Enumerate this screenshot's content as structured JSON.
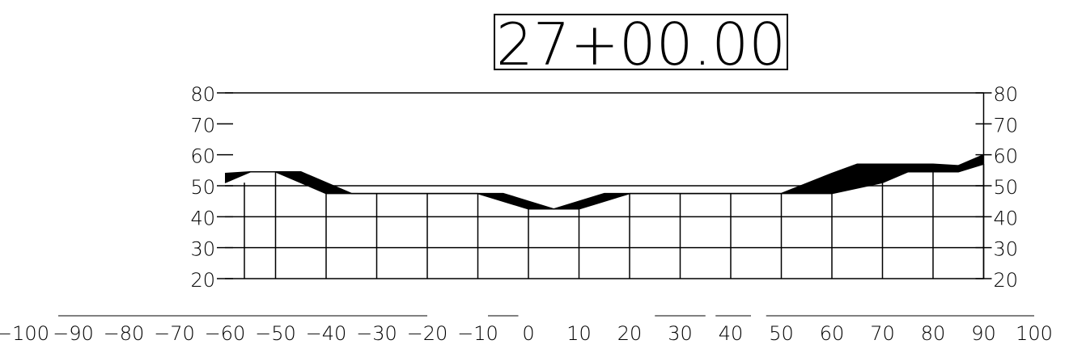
{
  "station_label": "27+00.00",
  "colors": {
    "ink": "#000000",
    "background": "#ffffff",
    "cut_fill_area": "#000000"
  },
  "chart_data": {
    "type": "area",
    "title": "27+00.00",
    "xlim": [
      -100,
      100
    ],
    "ylim": [
      20,
      80
    ],
    "x_tick_labels": [
      "-100",
      "-90",
      "-80",
      "-70",
      "-60",
      "-50",
      "-40",
      "-30",
      "-20",
      "-10",
      "0",
      "10",
      "20",
      "30",
      "40",
      "50",
      "60",
      "70",
      "80",
      "90",
      "100"
    ],
    "y_tick_labels": [
      "20",
      "30",
      "40",
      "50",
      "60",
      "70",
      "80"
    ],
    "grid": true,
    "grid_x": [
      -50,
      -40,
      -30,
      -20,
      -10,
      0,
      10,
      20,
      30,
      40,
      50,
      60,
      70,
      80,
      90
    ],
    "grid_x_limits": [
      -60,
      90
    ],
    "series": [
      {
        "key": "existing_ground",
        "points": [
          [
            -60,
            51
          ],
          [
            -55,
            54.5
          ],
          [
            -50,
            54.5
          ],
          [
            -45,
            54.5
          ],
          [
            -35,
            47.5
          ],
          [
            -30,
            47.5
          ],
          [
            -20,
            47.5
          ],
          [
            -10,
            47.5
          ],
          [
            -5,
            47.5
          ],
          [
            0,
            45
          ],
          [
            5,
            42.5
          ],
          [
            10,
            45
          ],
          [
            15,
            47.5
          ],
          [
            20,
            47.5
          ],
          [
            40,
            47.5
          ],
          [
            50,
            47.5
          ],
          [
            60,
            54
          ],
          [
            65,
            57
          ],
          [
            80,
            57
          ],
          [
            85,
            56.5
          ],
          [
            90,
            60
          ]
        ]
      },
      {
        "key": "proposed_ground",
        "points": [
          [
            -60,
            54
          ],
          [
            -55,
            54.5
          ],
          [
            -50,
            54.5
          ],
          [
            -45,
            51
          ],
          [
            -40,
            47.5
          ],
          [
            -10,
            47.5
          ],
          [
            0,
            42.5
          ],
          [
            10,
            42.5
          ],
          [
            20,
            47.5
          ],
          [
            50,
            47.5
          ],
          [
            60,
            47.5
          ],
          [
            70,
            51
          ],
          [
            75,
            54.5
          ],
          [
            85,
            54.5
          ],
          [
            90,
            57
          ]
        ]
      }
    ]
  }
}
